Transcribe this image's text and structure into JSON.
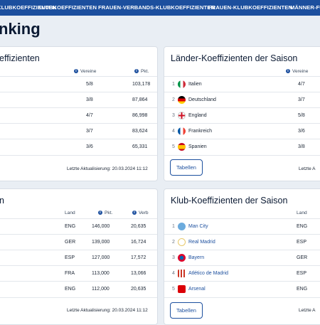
{
  "nav": {
    "items": [
      "KLUBKOEFFIZIENTEN",
      "KLUBKOEFFIZIENTEN",
      "FRAUEN-VERBANDS-KLUBKOEFFIZIENTEN",
      "FRAUEN-KLUBKOEFFIZIENTEN",
      "MÄNNER-FU"
    ]
  },
  "page": {
    "title": "nking"
  },
  "card_top_left": {
    "title": "effizienten",
    "col_clubs": "Vereine",
    "col_pts": "Pkt.",
    "rows": [
      {
        "clubs": "5/8",
        "pts": "103,178"
      },
      {
        "clubs": "3/8",
        "pts": "87,864"
      },
      {
        "clubs": "4/7",
        "pts": "86,998"
      },
      {
        "clubs": "3/7",
        "pts": "83,624"
      },
      {
        "clubs": "3/6",
        "pts": "65,331"
      }
    ],
    "updated": "Letzte Aktualisierung: 20.03.2024 11:12"
  },
  "card_top_right": {
    "title": "Länder-Koeffizienten der Saison",
    "col_clubs": "Vereine",
    "rows": [
      {
        "rank": "1",
        "name": "Italien",
        "clubs": "4/7",
        "flag": "italy-flag"
      },
      {
        "rank": "2",
        "name": "Deutschland",
        "clubs": "3/7",
        "flag": "germany-flag"
      },
      {
        "rank": "3",
        "name": "England",
        "clubs": "5/8",
        "flag": "england-flag"
      },
      {
        "rank": "4",
        "name": "Frankreich",
        "clubs": "3/6",
        "flag": "france-flag"
      },
      {
        "rank": "5",
        "name": "Spanien",
        "clubs": "3/8",
        "flag": "spain-flag"
      }
    ],
    "button": "Tabellen",
    "updated": "Letzte A"
  },
  "card_bottom_left": {
    "title": "n",
    "col_country": "Land",
    "col_pts": "Pkt.",
    "col_assoc": "Verb",
    "rows": [
      {
        "country": "ENG",
        "pts": "146,000",
        "assoc": "20,635"
      },
      {
        "country": "GER",
        "pts": "139,000",
        "assoc": "16,724"
      },
      {
        "country": "ESP",
        "pts": "127,000",
        "assoc": "17,572"
      },
      {
        "country": "FRA",
        "pts": "113,000",
        "assoc": "13,066"
      },
      {
        "country": "ENG",
        "pts": "112,000",
        "assoc": "20,635"
      }
    ],
    "updated": "Letzte Aktualisierung: 20.03.2024 11:12"
  },
  "card_bottom_right": {
    "title": "Klub-Koeffizienten der Saison",
    "col_country": "Land",
    "rows": [
      {
        "rank": "1",
        "name": "Man City",
        "country": "ENG",
        "crest": "man-city-crest",
        "color": "#6cabdd"
      },
      {
        "rank": "2",
        "name": "Real Madrid",
        "country": "ESP",
        "crest": "real-madrid-crest",
        "color": "#e8c96a"
      },
      {
        "rank": "3",
        "name": "Bayern",
        "country": "GER",
        "crest": "bayern-crest",
        "color": "#dc052d"
      },
      {
        "rank": "4",
        "name": "Atlético de Madrid",
        "country": "ESP",
        "crest": "atletico-crest",
        "color": "#cb3524"
      },
      {
        "rank": "5",
        "name": "Arsenal",
        "country": "ENG",
        "crest": "arsenal-crest",
        "color": "#db0007"
      }
    ],
    "button": "Tabellen",
    "updated": "Letzte A"
  },
  "colors": {
    "nav": "#1c4f9e",
    "link": "#1c4f9e"
  }
}
